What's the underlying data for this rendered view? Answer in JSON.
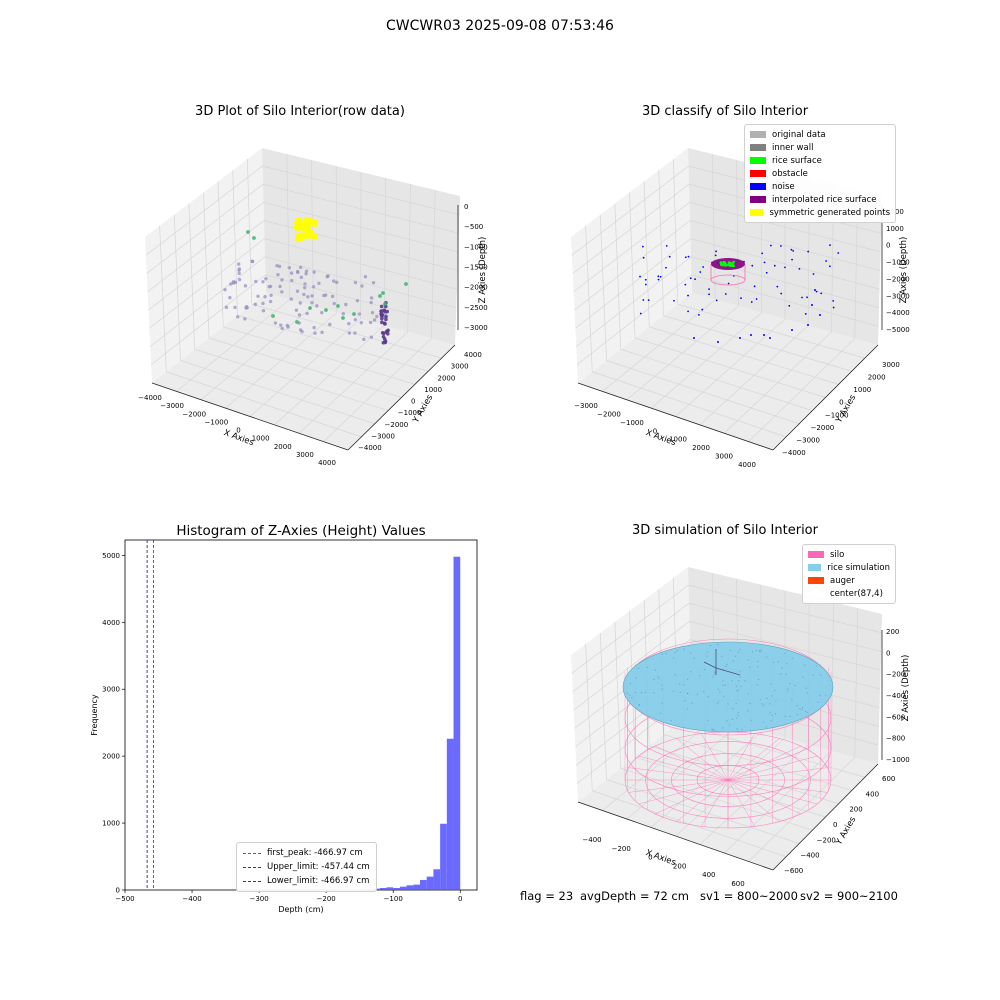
{
  "suptitle": "CWCWR03 2025-09-08 07:53:46",
  "colors": {
    "pane": "#f2f2f2",
    "pane_dark": "#e6e6e6",
    "grid": "#d6d6d6",
    "hist_bar": "#5050ff",
    "first_peak": "#cc3333",
    "limit": "#2233cc",
    "silo": "#ff69b4",
    "rice": "#87ceeb",
    "auger": "#ff4500",
    "rice_surface": "#00ff00",
    "interp_surface": "#800080",
    "noise": "#0000ff",
    "symmetric": "#ffff00",
    "original": "#b0b0b0",
    "inner_wall": "#808080",
    "obstacle": "#ff0000"
  },
  "chart_data": [
    {
      "type": "scatter",
      "title": "3D Plot of Silo Interior(row data)",
      "xlabel": "X Axies",
      "ylabel": "Y Axies",
      "zlabel": "Z Axies (Depth)",
      "x_ticks": [
        "−4000",
        "−3000",
        "−2000",
        "−1000",
        "0",
        "1000",
        "2000",
        "3000",
        "4000"
      ],
      "y_ticks": [
        "−4000",
        "−3000",
        "−2000",
        "−1000",
        "0",
        "1000",
        "2000",
        "3000",
        "4000"
      ],
      "z_ticks": [
        "0",
        "−500",
        "−1000",
        "−1500",
        "−2000",
        "−2500",
        "−3000"
      ],
      "xlim": [
        -4000,
        4000
      ],
      "ylim": [
        -4000,
        4000
      ],
      "zlim": [
        -3200,
        0
      ],
      "grid": true
    },
    {
      "type": "scatter",
      "title": "3D classify of Silo Interior",
      "xlabel": "X Axies",
      "ylabel": "Y Axies",
      "zlabel": "Z Axies (Depth)",
      "x_ticks": [
        "−3000",
        "−2000",
        "−1000",
        "0",
        "1000",
        "2000",
        "3000",
        "4000"
      ],
      "y_ticks": [
        "−4000",
        "−3000",
        "−2000",
        "−1000",
        "0",
        "1000",
        "2000",
        "3000"
      ],
      "z_ticks": [
        "2000",
        "1000",
        "0",
        "−1000",
        "−2000",
        "−3000",
        "−4000",
        "−5000"
      ],
      "xlim": [
        -3500,
        4000
      ],
      "ylim": [
        -4000,
        3500
      ],
      "zlim": [
        -5200,
        2000
      ],
      "legend": [
        "original data",
        "inner wall",
        "rice surface",
        "obstacle",
        "noise",
        "interpolated rice surface",
        "symmetric generated points"
      ],
      "legend_position": "upper right",
      "grid": true
    },
    {
      "type": "bar",
      "title": "Histogram of Z-Axies (Height) Values",
      "xlabel": "Depth (cm)",
      "ylabel": "Frequency",
      "xlim": [
        -500,
        25
      ],
      "ylim": [
        0,
        5230
      ],
      "x_ticks": [
        -500,
        -400,
        -300,
        -200,
        -100,
        0
      ],
      "y_ticks": [
        0,
        1000,
        2000,
        3000,
        4000,
        5000
      ],
      "bins": [
        {
          "x0": -180,
          "x1": -170,
          "value": 5
        },
        {
          "x0": -170,
          "x1": -160,
          "value": 5
        },
        {
          "x0": -160,
          "x1": -150,
          "value": 8
        },
        {
          "x0": -150,
          "x1": -140,
          "value": 10
        },
        {
          "x0": -140,
          "x1": -130,
          "value": 15
        },
        {
          "x0": -130,
          "x1": -120,
          "value": 20
        },
        {
          "x0": -120,
          "x1": -110,
          "value": 30
        },
        {
          "x0": -110,
          "x1": -100,
          "value": 40
        },
        {
          "x0": -100,
          "x1": -90,
          "value": 30
        },
        {
          "x0": -90,
          "x1": -80,
          "value": 50
        },
        {
          "x0": -80,
          "x1": -70,
          "value": 70
        },
        {
          "x0": -70,
          "x1": -60,
          "value": 80
        },
        {
          "x0": -60,
          "x1": -50,
          "value": 150
        },
        {
          "x0": -50,
          "x1": -40,
          "value": 200
        },
        {
          "x0": -40,
          "x1": -30,
          "value": 310
        },
        {
          "x0": -30,
          "x1": -20,
          "value": 990
        },
        {
          "x0": -20,
          "x1": -10,
          "value": 2260
        },
        {
          "x0": -10,
          "x1": 0,
          "value": 4980
        }
      ],
      "reference_lines": [
        {
          "label": "first_peak: -466.97 cm",
          "x": -466.97,
          "color": "#cc3333"
        },
        {
          "label": "Upper_limit: -457.44 cm",
          "x": -457.44,
          "color": "#2233cc"
        },
        {
          "label": "Lower_limit: -466.97 cm",
          "x": -466.97,
          "color": "#2233cc"
        }
      ],
      "legend_position": "lower center",
      "grid": false
    },
    {
      "type": "scatter",
      "title": "3D simulation of Silo Interior",
      "xlabel": "X Axies",
      "ylabel": "Y Axies",
      "zlabel": "Z Axies (Depth)",
      "x_ticks": [
        "−400",
        "−200",
        "0",
        "200",
        "400",
        "600"
      ],
      "y_ticks": [
        "−600",
        "−400",
        "−200",
        "0",
        "200",
        "400",
        "600"
      ],
      "z_ticks": [
        "200",
        "0",
        "−200",
        "−400",
        "−600",
        "−800",
        "−1000"
      ],
      "xlim": [
        -500,
        700
      ],
      "ylim": [
        -700,
        700
      ],
      "zlim": [
        -1050,
        300
      ],
      "legend": [
        "silo",
        "rice simulation",
        "auger",
        "center(87,4)"
      ],
      "legend_position": "upper right",
      "grid": true
    }
  ],
  "footer": {
    "flag": "flag = 23",
    "avg": "avgDepth = 72 cm",
    "sv1": "sv1 = 800~2000",
    "sv2": "sv2 = 900~2100"
  }
}
